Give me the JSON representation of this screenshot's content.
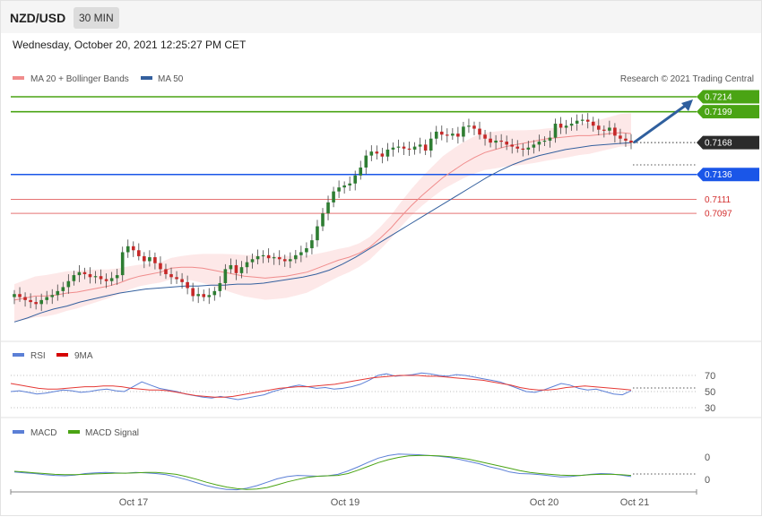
{
  "header": {
    "pair": "NZD/USD",
    "timeframe": "30 MIN",
    "timestamp": "Wednesday, October 20, 2021 12:25:27 PM CET"
  },
  "main_legend": {
    "ma20": "MA 20 + Bollinger Bands",
    "ma50": "MA 50",
    "credit": "Research © 2021 Trading Central"
  },
  "rsi_legend": {
    "rsi": "RSI",
    "ma9": "9MA"
  },
  "macd_legend": {
    "macd": "MACD",
    "signal": "MACD Signal"
  },
  "colors": {
    "bull": "#2e7d32",
    "bear": "#c62828",
    "resistance": "#4aa414",
    "pivot": "#1a56e8",
    "support": "#e57373",
    "ma50": "#34609e",
    "band": "#fde4e4",
    "arrow": "#2f5f9e",
    "rsi": "#5b7fd6",
    "macd_signal": "#4aa414"
  },
  "chart_data": [
    {
      "type": "candlestick",
      "title": "NZD/USD 30 MIN",
      "x_ticks": [
        "Oct 17",
        "Oct 19",
        "Oct 20",
        "Oct 21"
      ],
      "price_levels": [
        {
          "value": 0.7214,
          "label": "0.7214",
          "kind": "resistance"
        },
        {
          "value": 0.7199,
          "label": "0.7199",
          "kind": "resistance"
        },
        {
          "value": 0.7168,
          "label": "0.7168",
          "kind": "last"
        },
        {
          "value": 0.7136,
          "label": "0.7136",
          "kind": "pivot"
        },
        {
          "value": 0.7111,
          "label": "0.7111",
          "kind": "support"
        },
        {
          "value": 0.7097,
          "label": "0.7097",
          "kind": "support"
        }
      ],
      "close": [
        0.7016,
        0.7013,
        0.701,
        0.7008,
        0.7006,
        0.701,
        0.7013,
        0.7015,
        0.7019,
        0.7023,
        0.7029,
        0.7035,
        0.7038,
        0.7036,
        0.7033,
        0.7034,
        0.7031,
        0.7029,
        0.7032,
        0.7035,
        0.7058,
        0.7064,
        0.706,
        0.7054,
        0.7049,
        0.7053,
        0.7047,
        0.7041,
        0.7036,
        0.7033,
        0.7031,
        0.7028,
        0.7022,
        0.7014,
        0.7016,
        0.7013,
        0.7015,
        0.7019,
        0.7027,
        0.7041,
        0.7045,
        0.7037,
        0.7043,
        0.7048,
        0.7051,
        0.7054,
        0.7055,
        0.7052,
        0.7053,
        0.7051,
        0.7049,
        0.7051,
        0.7055,
        0.7058,
        0.7062,
        0.707,
        0.7084,
        0.7097,
        0.7108,
        0.7119,
        0.7123,
        0.7125,
        0.7127,
        0.7135,
        0.7143,
        0.7155,
        0.7159,
        0.7157,
        0.7154,
        0.7161,
        0.7163,
        0.7164,
        0.7162,
        0.7161,
        0.7164,
        0.7166,
        0.716,
        0.7172,
        0.7179,
        0.7176,
        0.7175,
        0.7177,
        0.7174,
        0.7184,
        0.7185,
        0.7182,
        0.7176,
        0.7172,
        0.7168,
        0.717,
        0.7169,
        0.7166,
        0.7164,
        0.7162,
        0.7161,
        0.7163,
        0.7166,
        0.7169,
        0.717,
        0.7173,
        0.7187,
        0.7183,
        0.7185,
        0.7187,
        0.719,
        0.7191,
        0.7189,
        0.7185,
        0.7181,
        0.718,
        0.7183,
        0.7175,
        0.7172,
        0.717,
        0.7168
      ],
      "ohlc_note": "closes read from candle bodies; each candle opens at prior close",
      "ma20": [
        0.701,
        0.7012,
        0.7014,
        0.7014,
        0.7015,
        0.7017,
        0.7018,
        0.702,
        0.7022,
        0.7024,
        0.7027,
        0.7031,
        0.7034,
        0.7036,
        0.7038,
        0.7042,
        0.7043,
        0.7043,
        0.7042,
        0.704,
        0.7038,
        0.7036,
        0.7034,
        0.7033,
        0.7032,
        0.7033,
        0.7034,
        0.7036,
        0.7038,
        0.7042,
        0.7046,
        0.705,
        0.7053,
        0.7057,
        0.7063,
        0.7072,
        0.7082,
        0.7094,
        0.7105,
        0.7115,
        0.7124,
        0.7133,
        0.714,
        0.7147,
        0.7153,
        0.7158,
        0.7161,
        0.7164,
        0.7166,
        0.7168,
        0.717,
        0.7172,
        0.7173,
        0.7174,
        0.7175,
        0.7175,
        0.7176,
        0.7177,
        0.7178,
        0.7177
      ],
      "ma50": [
        0.6988,
        0.6992,
        0.6997,
        0.7001,
        0.7004,
        0.7008,
        0.7011,
        0.7014,
        0.7017,
        0.7019,
        0.7021,
        0.7022,
        0.7023,
        0.7024,
        0.7024,
        0.7025,
        0.7025,
        0.7026,
        0.7026,
        0.7027,
        0.7029,
        0.7031,
        0.7033,
        0.7036,
        0.704,
        0.7046,
        0.7053,
        0.7061,
        0.7069,
        0.7077,
        0.7085,
        0.7093,
        0.7101,
        0.7109,
        0.7117,
        0.7125,
        0.7133,
        0.714,
        0.7146,
        0.7151,
        0.7155,
        0.7158,
        0.7161,
        0.7163,
        0.7165,
        0.7166,
        0.7167,
        0.7168
      ],
      "forecast_arrow": {
        "from": 0.7168,
        "to": 0.7214
      }
    },
    {
      "type": "line",
      "title": "RSI",
      "yticks": [
        70,
        50,
        30
      ],
      "series": [
        {
          "name": "RSI",
          "values": [
            50,
            51,
            49,
            47,
            48,
            50,
            52,
            51,
            49,
            50,
            52,
            53,
            51,
            50,
            56,
            62,
            58,
            54,
            52,
            50,
            47,
            45,
            43,
            42,
            44,
            42,
            40,
            42,
            44,
            46,
            50,
            53,
            56,
            58,
            56,
            54,
            55,
            53,
            54,
            56,
            59,
            64,
            70,
            72,
            69,
            70,
            71,
            73,
            72,
            70,
            69,
            71,
            70,
            68,
            66,
            64,
            62,
            58,
            54,
            50,
            49,
            52,
            56,
            60,
            58,
            54,
            52,
            53,
            50,
            47,
            46,
            51
          ]
        },
        {
          "name": "9MA",
          "values": [
            60,
            58,
            56,
            54,
            53,
            53,
            54,
            55,
            56,
            56,
            57,
            57,
            56,
            54,
            53,
            52,
            52,
            51,
            49,
            47,
            45,
            44,
            43,
            43,
            44,
            46,
            48,
            50,
            52,
            54,
            55,
            56,
            56,
            57,
            58,
            59,
            61,
            63,
            65,
            67,
            68,
            69,
            70,
            70,
            70,
            69,
            69,
            68,
            67,
            66,
            65,
            64,
            62,
            60,
            58,
            55,
            53,
            52,
            52,
            53,
            55,
            56,
            57,
            56,
            55,
            54,
            53,
            52
          ]
        }
      ]
    },
    {
      "type": "line",
      "title": "MACD",
      "yticks": [
        0,
        0
      ],
      "series": [
        {
          "name": "MACD",
          "values": [
            -0.2,
            -0.4,
            -0.6,
            -0.9,
            -1.1,
            -1.2,
            -1.0,
            -0.6,
            -0.4,
            -0.3,
            -0.4,
            -0.5,
            -0.3,
            -0.4,
            -0.6,
            -0.9,
            -1.5,
            -2.2,
            -3.0,
            -3.8,
            -4.4,
            -4.8,
            -4.9,
            -4.5,
            -3.8,
            -2.9,
            -2.0,
            -1.4,
            -1.1,
            -1.2,
            -1.3,
            -1.2,
            -0.8,
            0.1,
            1.2,
            2.4,
            3.5,
            4.2,
            4.6,
            4.5,
            4.4,
            4.2,
            4.0,
            3.7,
            3.2,
            2.6,
            2.0,
            1.2,
            0.6,
            -0.2,
            -0.6,
            -0.7,
            -0.9,
            -1.2,
            -1.5,
            -1.4,
            -1.1,
            -0.8,
            -0.6,
            -0.7,
            -1.0,
            -1.4
          ]
        },
        {
          "name": "MACD Signal",
          "values": [
            0.0,
            -0.2,
            -0.4,
            -0.6,
            -0.8,
            -0.9,
            -0.9,
            -0.8,
            -0.7,
            -0.6,
            -0.5,
            -0.5,
            -0.4,
            -0.3,
            -0.3,
            -0.5,
            -0.8,
            -1.4,
            -2.1,
            -2.9,
            -3.6,
            -4.2,
            -4.6,
            -4.8,
            -4.7,
            -4.3,
            -3.6,
            -2.8,
            -2.2,
            -1.6,
            -1.3,
            -1.2,
            -1.1,
            -0.6,
            0.3,
            1.3,
            2.3,
            3.1,
            3.7,
            4.1,
            4.2,
            4.2,
            4.1,
            3.9,
            3.6,
            3.2,
            2.6,
            2.0,
            1.4,
            0.8,
            0.2,
            -0.3,
            -0.6,
            -0.8,
            -1.0,
            -1.1,
            -1.1,
            -0.9,
            -0.8,
            -0.8,
            -0.9,
            -1.1
          ]
        }
      ]
    }
  ]
}
